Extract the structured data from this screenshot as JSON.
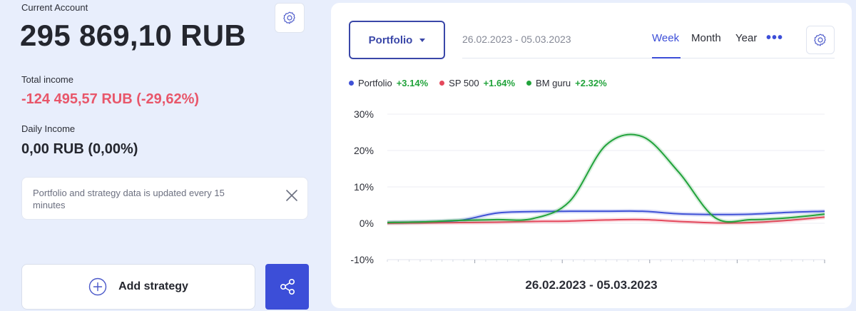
{
  "account": {
    "label": "Current Account",
    "balance": "295 869,10 RUB",
    "total_income_label": "Total income",
    "total_income_value": "-124 495,57 RUB (-29,62%)",
    "daily_income_label": "Daily Income",
    "daily_income_value": "0,00 RUB (0,00%)",
    "settings_icon": "gear-icon"
  },
  "notice": {
    "text": "Portfolio and strategy data is updated every 15 minutes",
    "close_icon": "close-icon"
  },
  "actions": {
    "add_strategy_label": "Add strategy",
    "add_icon": "plus-circle-icon",
    "share_icon": "share-icon"
  },
  "panel": {
    "portfolio_select": "Portfolio",
    "date_range": "26.02.2023 - 05.03.2023",
    "tabs": [
      "Week",
      "Month",
      "Year"
    ],
    "active_tab": "Week",
    "more_label": "•••",
    "settings_icon": "gear-icon",
    "legend": [
      {
        "name": "Portfolio",
        "change": "+3.14%",
        "color": "#3f51d6"
      },
      {
        "name": "SP 500",
        "change": "+1.64%",
        "color": "#e4485c"
      },
      {
        "name": "BM guru",
        "change": "+2.32%",
        "color": "#21a33b"
      }
    ],
    "positive_color": "#21a33b"
  },
  "chart_data": {
    "type": "line",
    "xlabel": "26.02.2023 - 05.03.2023",
    "ylabel": "",
    "ylim": [
      -10,
      30
    ],
    "yticks": [
      "30%",
      "20%",
      "10%",
      "0%",
      "-10%"
    ],
    "grid": "horizontal",
    "legend_position": "top-left",
    "x": [
      0,
      1,
      2,
      3,
      4,
      5,
      6,
      7,
      8,
      9,
      10,
      11,
      12
    ],
    "series": [
      {
        "name": "Portfolio",
        "color": "#3f51d6",
        "values": [
          0.2,
          0.4,
          0.8,
          2.8,
          3.2,
          3.3,
          3.3,
          3.3,
          2.6,
          2.4,
          2.5,
          3.0,
          3.3
        ]
      },
      {
        "name": "SP 500",
        "color": "#e4485c",
        "values": [
          0.0,
          0.1,
          0.2,
          0.3,
          0.5,
          0.6,
          0.9,
          1.0,
          0.5,
          0.1,
          0.2,
          0.8,
          1.7
        ]
      },
      {
        "name": "BM guru",
        "color": "#21a33b",
        "values": [
          0.2,
          0.4,
          0.8,
          1.0,
          1.3,
          6.0,
          21.5,
          23.8,
          14.0,
          1.5,
          1.0,
          1.5,
          2.5
        ]
      }
    ]
  }
}
